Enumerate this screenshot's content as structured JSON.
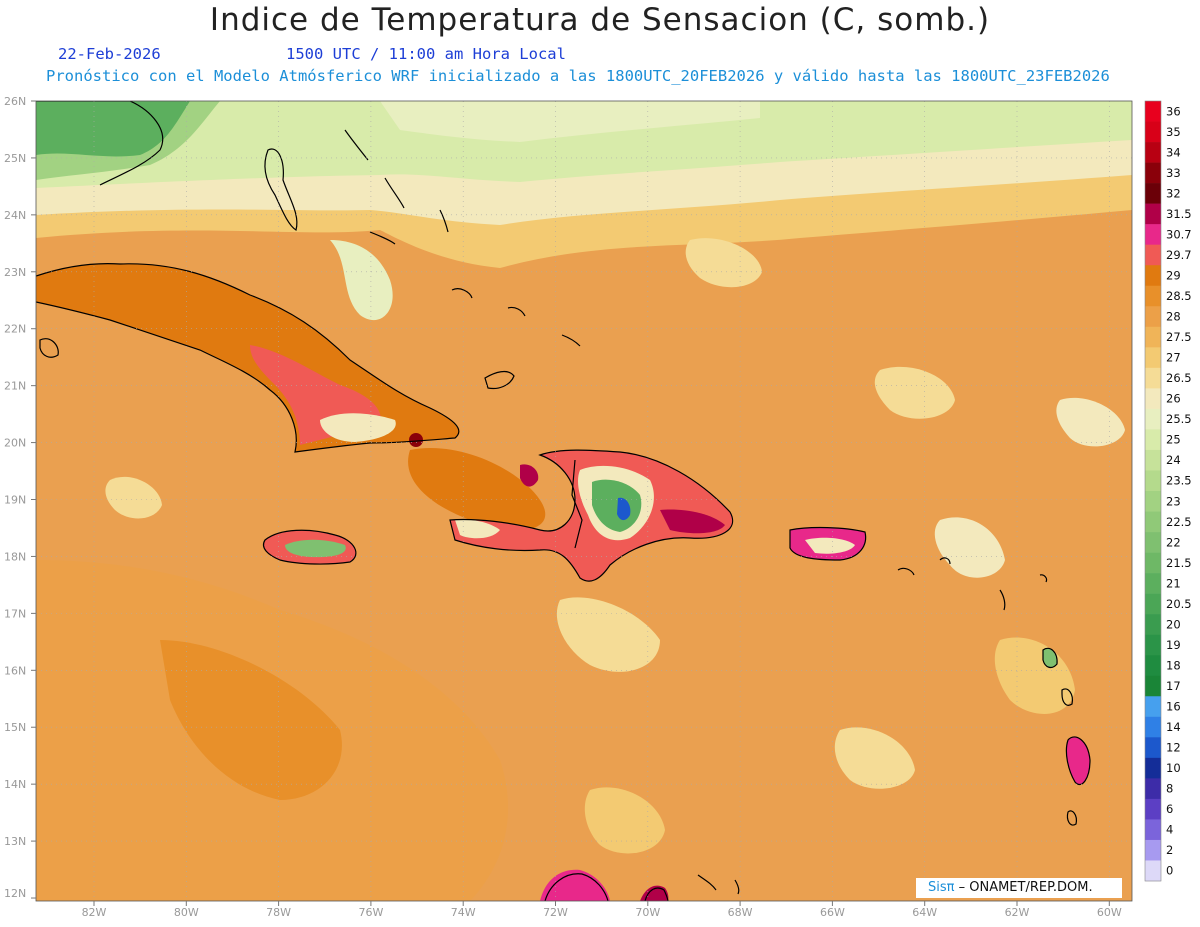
{
  "header": {
    "title": "Indice de Temperatura de Sensacion (C, somb.)",
    "date": "22-Feb-2026",
    "time": "1500 UTC / 11:00 am Hora Local",
    "forecast": "Pronóstico con el Modelo Atmósferico WRF inicializado a las 1800UTC_20FEB2026 y válido hasta las  1800UTC_23FEB2026"
  },
  "map": {
    "lat_labels": [
      "26N",
      "25N",
      "24N",
      "23N",
      "22N",
      "21N",
      "20N",
      "19N",
      "18N",
      "17N",
      "16N",
      "15N",
      "14N",
      "13N",
      "12N"
    ],
    "lon_labels": [
      "82W",
      "80W",
      "78W",
      "76W",
      "74W",
      "72W",
      "70W",
      "68W",
      "66W",
      "64W",
      "62W",
      "60W"
    ],
    "background_color": "#eaa050",
    "coastline_color": "#000000"
  },
  "colorbar": {
    "levels": [
      "36",
      "35",
      "34",
      "33",
      "32",
      "31.5",
      "30.7",
      "29.7",
      "29",
      "28.5",
      "28",
      "27.5",
      "27",
      "26.5",
      "26",
      "25.5",
      "25",
      "24",
      "23.5",
      "23",
      "22.5",
      "22",
      "21.5",
      "21",
      "20.5",
      "20",
      "19",
      "18",
      "17",
      "16",
      "14",
      "12",
      "10",
      "8",
      "6",
      "4",
      "2",
      "0"
    ],
    "colors": [
      "#e8001e",
      "#d80018",
      "#b80012",
      "#8a000a",
      "#6b0008",
      "#b00048",
      "#e8288a",
      "#f05a55",
      "#e07a10",
      "#e8902a",
      "#eca048",
      "#f0b458",
      "#f3ca72",
      "#f5dc96",
      "#f3e9bd",
      "#e8efc0",
      "#d8ebaa",
      "#c6e29a",
      "#b4da8c",
      "#a2d282",
      "#90c978",
      "#7fc070",
      "#6eb866",
      "#5caf5e",
      "#4ba656",
      "#3a9c4f",
      "#2b9448",
      "#1f8c40",
      "#1a8537",
      "#46a0ee",
      "#2f80e6",
      "#1c58cc",
      "#142d98",
      "#3d2ca8",
      "#5c3fc4",
      "#7b64db",
      "#a79af0",
      "#ddd9f8"
    ]
  },
  "credit": {
    "brand": "Sisπ",
    "org": "– ONAMET/REP.DOM."
  }
}
